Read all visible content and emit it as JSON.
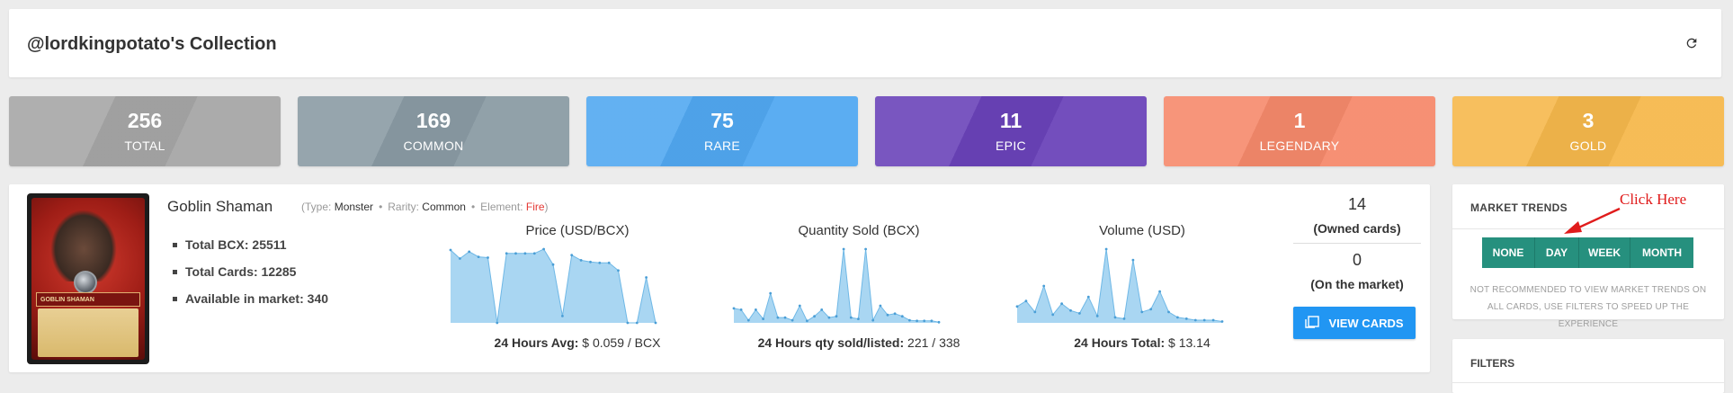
{
  "header": {
    "title": "@lordkingpotato's Collection",
    "refresh_icon": "refresh-icon"
  },
  "stats": [
    {
      "value": "256",
      "label": "TOTAL",
      "color": "#a6a6a6"
    },
    {
      "value": "169",
      "label": "COMMON",
      "color": "#8a9ba4"
    },
    {
      "value": "75",
      "label": "RARE",
      "color": "#51a8f1"
    },
    {
      "value": "11",
      "label": "EPIC",
      "color": "#6a43b9"
    },
    {
      "value": "1",
      "label": "LEGENDARY",
      "color": "#f6896b"
    },
    {
      "value": "3",
      "label": "GOLD",
      "color": "#f6b84c"
    }
  ],
  "card": {
    "name": "Goblin Shaman",
    "image_label": "GOBLIN SHAMAN",
    "meta": {
      "type_label": "Type:",
      "type": "Monster",
      "rarity_label": "Rarity:",
      "rarity": "Common",
      "element_label": "Element:",
      "element": "Fire"
    },
    "bullets": [
      {
        "label": "Total BCX:",
        "value": "25511"
      },
      {
        "label": "Total Cards:",
        "value": "12285"
      },
      {
        "label": "Available in market:",
        "value": "340"
      }
    ],
    "owned_count": "14",
    "owned_label": "(Owned cards)",
    "market_count": "0",
    "market_label": "(On the market)",
    "view_button": "VIEW CARDS",
    "view_icon": "cards-icon"
  },
  "charts": {
    "price": {
      "title": "Price (USD/BCX)",
      "foot_label": "24 Hours Avg:",
      "foot_value": "$ 0.059 / BCX",
      "values": [
        0.085,
        0.075,
        0.083,
        0.077,
        0.076,
        0.0,
        0.081,
        0.081,
        0.081,
        0.081,
        0.086,
        0.068,
        0.008,
        0.079,
        0.073,
        0.071,
        0.07,
        0.07,
        0.061,
        0.0,
        0.0,
        0.053,
        0.0
      ],
      "color": "#a9d6f2",
      "line": "#6fb8e6"
    },
    "qty": {
      "title": "Quantity Sold (BCX)",
      "foot_label": "24 Hours qty sold/listed:",
      "foot_value": "221 / 338",
      "values": [
        22,
        20,
        4,
        20,
        6,
        45,
        8,
        8,
        4,
        26,
        3,
        10,
        20,
        8,
        10,
        112,
        8,
        6,
        112,
        4,
        26,
        12,
        14,
        10,
        4,
        3,
        3,
        3,
        1
      ],
      "color": "#a9d6f2",
      "line": "#6fb8e6"
    },
    "vol": {
      "title": "Volume (USD)",
      "foot_label": "24 Hours Total:",
      "foot_value": "$ 13.14",
      "values": [
        1.2,
        1.6,
        0.8,
        2.7,
        0.6,
        1.4,
        0.9,
        0.7,
        1.9,
        0.5,
        5.4,
        0.4,
        0.3,
        4.6,
        0.8,
        1.0,
        2.3,
        0.8,
        0.4,
        0.3,
        0.2,
        0.2,
        0.2,
        0.1
      ],
      "color": "#a9d6f2",
      "line": "#6fb8e6"
    }
  },
  "trends": {
    "title": "MARKET TRENDS",
    "buttons": [
      "NONE",
      "DAY",
      "WEEK",
      "MONTH"
    ],
    "note": "NOT RECOMMENDED TO VIEW MARKET TRENDS ON ALL CARDS, USE FILTERS TO SPEED UP THE EXPERIENCE",
    "annotation": "Click Here",
    "accent": "#26907e"
  },
  "filters": {
    "title": "FILTERS"
  }
}
